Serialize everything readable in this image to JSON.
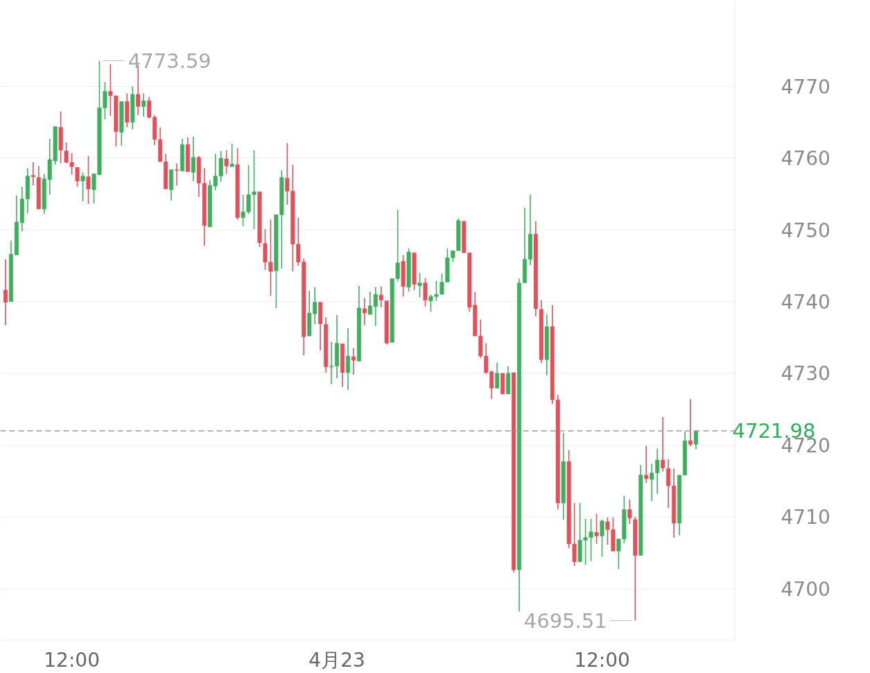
{
  "chart_data": {
    "type": "candlestick",
    "categories": [
      null,
      null,
      null,
      null,
      null,
      null,
      null,
      null,
      null,
      null,
      null,
      null,
      "12:00",
      null,
      null,
      null,
      null,
      null,
      null,
      null,
      null,
      null,
      null,
      null,
      null,
      null,
      null,
      null,
      null,
      null,
      null,
      null,
      null,
      null,
      null,
      null,
      null,
      null,
      null,
      null,
      null,
      null,
      null,
      null,
      null,
      null,
      null,
      null,
      null,
      null,
      null,
      null,
      null,
      null,
      null,
      null,
      null,
      null,
      null,
      null,
      "4月23",
      null,
      null,
      null,
      null,
      null,
      null,
      null,
      null,
      null,
      null,
      null,
      null,
      null,
      null,
      null,
      null,
      null,
      null,
      null,
      null,
      null,
      null,
      null,
      null,
      null,
      null,
      null,
      null,
      null,
      null,
      null,
      null,
      null,
      null,
      null,
      null,
      null,
      null,
      null,
      null,
      null,
      null,
      null,
      null,
      null,
      null,
      null,
      "12:00",
      null,
      null,
      null,
      null,
      null,
      null,
      null,
      null,
      null,
      null,
      null,
      null,
      null,
      null,
      null,
      null,
      null
    ],
    "ohlc": [
      [
        4741.6,
        4745.9,
        4736.7,
        4739.9
      ],
      [
        4740.0,
        4748.5,
        4740.0,
        4746.6
      ],
      [
        4746.5,
        4754.8,
        4746.5,
        4751.1
      ],
      [
        4751.0,
        4756.0,
        4749.8,
        4754.3
      ],
      [
        4754.3,
        4758.6,
        4752.3,
        4757.5
      ],
      [
        4757.6,
        4759.4,
        4756.2,
        4757.4
      ],
      [
        4757.3,
        4758.9,
        4752.9,
        4752.9
      ],
      [
        4752.9,
        4757.8,
        4752.2,
        4757.1
      ],
      [
        4757.0,
        4762.7,
        4754.9,
        4759.8
      ],
      [
        4759.6,
        4764.4,
        4759.1,
        4764.4
      ],
      [
        4764.3,
        4766.5,
        4759.3,
        4761.1
      ],
      [
        4761.0,
        4762.2,
        4759.3,
        4759.4
      ],
      [
        4759.4,
        4760.7,
        4757.7,
        4758.8
      ],
      [
        4758.7,
        4758.7,
        4756.0,
        4756.8
      ],
      [
        4756.8,
        4758.0,
        4754.0,
        4757.5
      ],
      [
        4757.4,
        4760.3,
        4753.6,
        4755.7
      ],
      [
        4755.6,
        4757.9,
        4753.7,
        4757.8
      ],
      [
        4757.7,
        4773.59,
        4757.6,
        4767.0
      ],
      [
        4767.0,
        4770.6,
        4765.4,
        4769.3
      ],
      [
        4769.3,
        4773.1,
        4765.9,
        4768.7
      ],
      [
        4768.7,
        4768.7,
        4761.6,
        4763.7
      ],
      [
        4763.6,
        4767.9,
        4761.7,
        4767.9
      ],
      [
        4767.9,
        4769.0,
        4764.3,
        4765.0
      ],
      [
        4765.0,
        4770.0,
        4764.0,
        4768.9
      ],
      [
        4768.9,
        4772.9,
        4766.0,
        4767.2
      ],
      [
        4767.2,
        4769.0,
        4765.8,
        4768.0
      ],
      [
        4768.0,
        4768.5,
        4765.5,
        4765.7
      ],
      [
        4765.7,
        4766.0,
        4761.8,
        4762.6
      ],
      [
        4762.6,
        4764.3,
        4759.5,
        4759.5
      ],
      [
        4759.5,
        4760.6,
        4755.7,
        4755.7
      ],
      [
        4755.6,
        4758.4,
        4754.1,
        4758.4
      ],
      [
        4758.4,
        4759.3,
        4756.2,
        4758.3
      ],
      [
        4758.2,
        4762.7,
        4758.2,
        4761.9
      ],
      [
        4761.9,
        4762.9,
        4758.1,
        4758.1
      ],
      [
        4758.0,
        4763.0,
        4756.8,
        4760.1
      ],
      [
        4760.1,
        4760.3,
        4754.6,
        4756.5
      ],
      [
        4756.5,
        4758.6,
        4747.8,
        4750.6
      ],
      [
        4750.4,
        4756.9,
        4750.4,
        4756.2
      ],
      [
        4756.1,
        4760.6,
        4755.5,
        4757.5
      ],
      [
        4757.5,
        4761.0,
        4756.7,
        4760.0
      ],
      [
        4759.9,
        4761.1,
        4757.8,
        4758.9
      ],
      [
        4758.8,
        4762.0,
        4758.8,
        4759.2
      ],
      [
        4759.1,
        4761.4,
        4751.4,
        4751.7
      ],
      [
        4751.7,
        4754.9,
        4750.5,
        4752.5
      ],
      [
        4752.5,
        4759.0,
        4752.2,
        4754.9
      ],
      [
        4754.9,
        4761.1,
        4750.1,
        4755.3
      ],
      [
        4755.3,
        4755.3,
        4747.6,
        4748.2
      ],
      [
        4748.1,
        4750.1,
        4744.4,
        4745.5
      ],
      [
        4745.5,
        4751.4,
        4740.8,
        4744.2
      ],
      [
        4744.3,
        4752.1,
        4739.1,
        4752.1
      ],
      [
        4752.1,
        4758.3,
        4744.6,
        4757.3
      ],
      [
        4757.2,
        4762.1,
        4753.5,
        4755.4
      ],
      [
        4755.4,
        4759.1,
        4744.2,
        4748.0
      ],
      [
        4748.0,
        4751.7,
        4745.0,
        4745.5
      ],
      [
        4745.5,
        4746.0,
        4732.5,
        4735.1
      ],
      [
        4735.2,
        4741.5,
        4735.2,
        4738.4
      ],
      [
        4738.3,
        4742.0,
        4736.8,
        4739.9
      ],
      [
        4739.9,
        4739.9,
        4733.2,
        4736.9
      ],
      [
        4736.8,
        4737.8,
        4730.1,
        4730.9
      ],
      [
        4730.9,
        4734.4,
        4728.5,
        4731.0
      ],
      [
        4731.0,
        4738.1,
        4729.3,
        4734.2
      ],
      [
        4734.1,
        4734.1,
        4728.1,
        4730.1
      ],
      [
        4730.1,
        4736.3,
        4727.7,
        4732.4
      ],
      [
        4732.3,
        4733.5,
        4729.8,
        4731.8
      ],
      [
        4731.7,
        4742.2,
        4731.7,
        4739.1
      ],
      [
        4739.0,
        4740.5,
        4736.7,
        4738.4
      ],
      [
        4738.2,
        4741.4,
        4738.2,
        4739.4
      ],
      [
        4739.3,
        4742.0,
        4736.6,
        4741.0
      ],
      [
        4740.9,
        4742.1,
        4739.2,
        4740.2
      ],
      [
        4740.1,
        4740.1,
        4734.0,
        4734.2
      ],
      [
        4734.3,
        4743.2,
        4734.3,
        4743.2
      ],
      [
        4743.2,
        4752.8,
        4742.8,
        4745.4
      ],
      [
        4745.6,
        4746.5,
        4740.7,
        4742.1
      ],
      [
        4742.0,
        4747.4,
        4741.4,
        4746.9
      ],
      [
        4746.8,
        4746.8,
        4741.6,
        4742.4
      ],
      [
        4742.2,
        4744.0,
        4740.6,
        4742.6
      ],
      [
        4742.6,
        4743.3,
        4739.3,
        4740.2
      ],
      [
        4740.1,
        4741.0,
        4738.6,
        4740.7
      ],
      [
        4740.7,
        4742.9,
        4740.1,
        4741.0
      ],
      [
        4741.0,
        4743.9,
        4741.0,
        4742.7
      ],
      [
        4742.7,
        4747.4,
        4742.7,
        4746.1
      ],
      [
        4746.1,
        4747.1,
        4745.5,
        4747.1
      ],
      [
        4747.1,
        4751.6,
        4747.1,
        4751.3
      ],
      [
        4751.2,
        4751.2,
        4746.8,
        4746.8
      ],
      [
        4746.8,
        4746.8,
        4738.6,
        4739.2
      ],
      [
        4739.5,
        4741.3,
        4735.2,
        4735.2
      ],
      [
        4735.2,
        4737.5,
        4732.1,
        4732.4
      ],
      [
        4732.4,
        4734.2,
        4729.9,
        4730.1
      ],
      [
        4730.2,
        4730.4,
        4726.4,
        4727.9
      ],
      [
        4727.9,
        4731.5,
        4727.9,
        4730.0
      ],
      [
        4730.0,
        4730.0,
        4727.1,
        4727.1
      ],
      [
        4727.1,
        4731.0,
        4727.1,
        4730.0
      ],
      [
        4730.1,
        4730.1,
        4702.2,
        4702.6
      ],
      [
        4702.6,
        4743.2,
        4696.8,
        4742.6
      ],
      [
        4742.6,
        4753.1,
        4742.6,
        4745.9
      ],
      [
        4745.9,
        4754.9,
        4745.1,
        4749.4
      ],
      [
        4749.4,
        4751.2,
        4737.9,
        4739.0
      ],
      [
        4738.9,
        4740.2,
        4731.4,
        4731.9
      ],
      [
        4731.9,
        4738.2,
        4729.7,
        4736.5
      ],
      [
        4736.5,
        4739.5,
        4725.7,
        4726.3
      ],
      [
        4726.3,
        4727.0,
        4711.0,
        4711.9
      ],
      [
        4711.9,
        4721.7,
        4709.6,
        4717.7
      ],
      [
        4717.7,
        4719.3,
        4705.6,
        4706.2
      ],
      [
        4706.2,
        4711.9,
        4703.1,
        4703.7
      ],
      [
        4703.7,
        4711.9,
        4703.7,
        4706.7
      ],
      [
        4706.7,
        4709.7,
        4703.3,
        4707.1
      ],
      [
        4707.1,
        4709.7,
        4703.8,
        4707.9
      ],
      [
        4707.8,
        4710.4,
        4706.2,
        4707.3
      ],
      [
        4707.3,
        4709.6,
        4704.4,
        4709.4
      ],
      [
        4709.3,
        4709.9,
        4706.1,
        4708.2
      ],
      [
        4708.2,
        4709.9,
        4705.2,
        4705.2
      ],
      [
        4705.2,
        4706.9,
        4702.7,
        4706.9
      ],
      [
        4706.9,
        4712.9,
        4706.3,
        4711.0
      ],
      [
        4711.0,
        4712.4,
        4709.0,
        4709.8
      ],
      [
        4709.6,
        4710.0,
        4695.51,
        4704.6
      ],
      [
        4704.6,
        4717.2,
        4704.6,
        4715.8
      ],
      [
        4715.8,
        4719.9,
        4714.7,
        4715.3
      ],
      [
        4715.2,
        4717.4,
        4712.2,
        4716.1
      ],
      [
        4716.1,
        4719.5,
        4713.2,
        4717.9
      ],
      [
        4717.9,
        4723.9,
        4716.3,
        4716.8
      ],
      [
        4716.7,
        4718.0,
        4711.2,
        4714.3
      ],
      [
        4714.3,
        4716.7,
        4707.1,
        4709.1
      ],
      [
        4709.1,
        4715.8,
        4707.4,
        4715.8
      ],
      [
        4715.8,
        4721.9,
        4715.8,
        4720.6
      ],
      [
        4720.6,
        4726.4,
        4719.8,
        4720.1
      ],
      [
        4720.1,
        4721.98,
        4719.4,
        4721.98
      ]
    ],
    "colors": [
      "#e2505c",
      "#3fae5f",
      "#3fae5f",
      "#3fae5f",
      "#3fae5f",
      "#e2505c",
      "#e2505c",
      "#3fae5f",
      "#3fae5f",
      "#3fae5f",
      "#e2505c",
      "#e2505c",
      "#e2505c",
      "#e2505c",
      "#3fae5f",
      "#e2505c",
      "#3fae5f",
      "#3fae5f",
      "#3fae5f",
      "#e2505c",
      "#e2505c",
      "#3fae5f",
      "#e2505c",
      "#3fae5f",
      "#e2505c",
      "#3fae5f",
      "#e2505c",
      "#e2505c",
      "#e2505c",
      "#e2505c",
      "#3fae5f",
      "#e2505c",
      "#3fae5f",
      "#e2505c",
      "#3fae5f",
      "#e2505c",
      "#e2505c",
      "#3fae5f",
      "#3fae5f",
      "#3fae5f",
      "#e2505c",
      "#3fae5f",
      "#e2505c",
      "#3fae5f",
      "#3fae5f",
      "#3fae5f",
      "#e2505c",
      "#e2505c",
      "#e2505c",
      "#3fae5f",
      "#3fae5f",
      "#e2505c",
      "#e2505c",
      "#e2505c",
      "#e2505c",
      "#3fae5f",
      "#3fae5f",
      "#e2505c",
      "#e2505c",
      "#3fae5f",
      "#3fae5f",
      "#e2505c",
      "#3fae5f",
      "#e2505c",
      "#3fae5f",
      "#e2505c",
      "#3fae5f",
      "#3fae5f",
      "#e2505c",
      "#e2505c",
      "#3fae5f",
      "#3fae5f",
      "#e2505c",
      "#3fae5f",
      "#e2505c",
      "#3fae5f",
      "#e2505c",
      "#3fae5f",
      "#3fae5f",
      "#3fae5f",
      "#3fae5f",
      "#3fae5f",
      "#3fae5f",
      "#e2505c",
      "#e2505c",
      "#e2505c",
      "#e2505c",
      "#e2505c",
      "#e2505c",
      "#3fae5f",
      "#e2505c",
      "#3fae5f",
      "#e2505c",
      "#3fae5f",
      "#3fae5f",
      "#3fae5f",
      "#e2505c",
      "#e2505c",
      "#3fae5f",
      "#e2505c",
      "#e2505c",
      "#3fae5f",
      "#e2505c",
      "#e2505c",
      "#3fae5f",
      "#3fae5f",
      "#3fae5f",
      "#e2505c",
      "#3fae5f",
      "#e2505c",
      "#e2505c",
      "#3fae5f",
      "#3fae5f",
      "#e2505c",
      "#e2505c",
      "#3fae5f",
      "#e2505c",
      "#3fae5f",
      "#3fae5f",
      "#e2505c",
      "#e2505c",
      "#e2505c",
      "#3fae5f",
      "#3fae5f",
      "#e2505c",
      "#3fae5f"
    ],
    "ylim": [
      4692.8,
      4782.0
    ],
    "yticks": [
      4700,
      4710,
      4720,
      4730,
      4740,
      4750,
      4760,
      4770
    ],
    "grid": "y",
    "ref_lines": [
      {
        "axis": "y",
        "value": 4721.98,
        "label": "4721.98",
        "color": "#9a9a9a",
        "line_style": "dashed"
      }
    ],
    "annotations": [
      "4773.59",
      "4695.51"
    ]
  }
}
